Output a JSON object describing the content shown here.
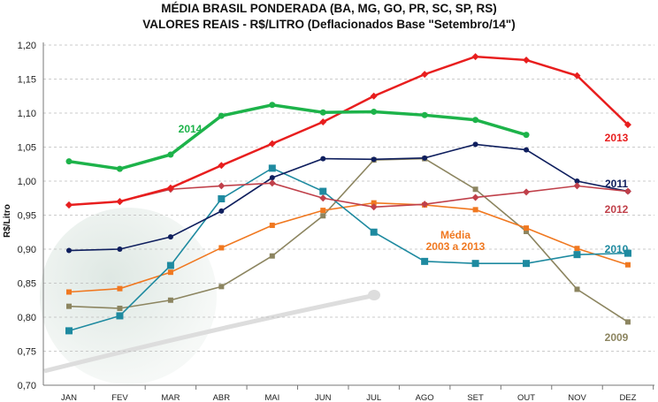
{
  "chart_data": {
    "type": "line",
    "title": "MÉDIA BRASIL PONDERADA (BA, MG, GO, PR, SC, SP, RS)",
    "subtitle": "VALORES REAIS - R$/LITRO (Deflacionados Base \"Setembro/14\")",
    "xlabel": "",
    "ylabel": "R$/Litro",
    "ylim": [
      0.7,
      1.2
    ],
    "yticks": [
      "0,70",
      "0,75",
      "0,80",
      "0,85",
      "0,90",
      "0,95",
      "1,00",
      "1,05",
      "1,10",
      "1,15",
      "1,20"
    ],
    "grid": true,
    "categories": [
      "JAN",
      "FEV",
      "MAR",
      "ABR",
      "MAI",
      "JUN",
      "JUL",
      "AGO",
      "SET",
      "OUT",
      "NOV",
      "DEZ"
    ],
    "series": [
      {
        "name": "2009",
        "label": "2009",
        "color": "#8c8560",
        "marker": "square",
        "values": [
          0.816,
          0.813,
          0.825,
          0.845,
          0.89,
          0.949,
          1.031,
          1.033,
          0.988,
          0.926,
          0.841,
          0.793
        ]
      },
      {
        "name": "Média 2003 a 2013",
        "label": "Média",
        "label2": "2003 a 2013",
        "color": "#f07820",
        "marker": "square",
        "values": [
          0.837,
          0.842,
          0.866,
          0.902,
          0.935,
          0.957,
          0.968,
          0.965,
          0.958,
          0.931,
          0.901,
          0.877
        ]
      },
      {
        "name": "2010",
        "label": "2010",
        "color": "#1e8aa0",
        "marker": "bigsquare",
        "values": [
          0.78,
          0.802,
          0.876,
          0.974,
          1.019,
          0.985,
          0.925,
          0.882,
          0.879,
          0.879,
          0.892,
          0.894
        ]
      },
      {
        "name": "2011",
        "label": "2011",
        "color": "#0f1f5e",
        "marker": "circle",
        "values": [
          0.898,
          0.9,
          0.918,
          0.956,
          1.005,
          1.033,
          1.032,
          1.034,
          1.054,
          1.046,
          1.0,
          0.985
        ]
      },
      {
        "name": "2012",
        "label": "2012",
        "color": "#c0404a",
        "marker": "diamond",
        "values": [
          0.965,
          0.97,
          0.988,
          0.993,
          0.997,
          0.975,
          0.962,
          0.966,
          0.976,
          0.984,
          0.993,
          0.985
        ]
      },
      {
        "name": "2013",
        "label": "2013",
        "color": "#e81e1e",
        "marker": "diamond",
        "values": [
          0.965,
          0.97,
          0.99,
          1.023,
          1.055,
          1.087,
          1.125,
          1.157,
          1.183,
          1.178,
          1.155,
          1.083
        ]
      },
      {
        "name": "2014",
        "label": "2014",
        "color": "#1db34a",
        "marker": "circle",
        "values": [
          1.029,
          1.018,
          1.039,
          1.096,
          1.112,
          1.101,
          1.102,
          1.097,
          1.09,
          1.068,
          null,
          null
        ]
      }
    ]
  }
}
